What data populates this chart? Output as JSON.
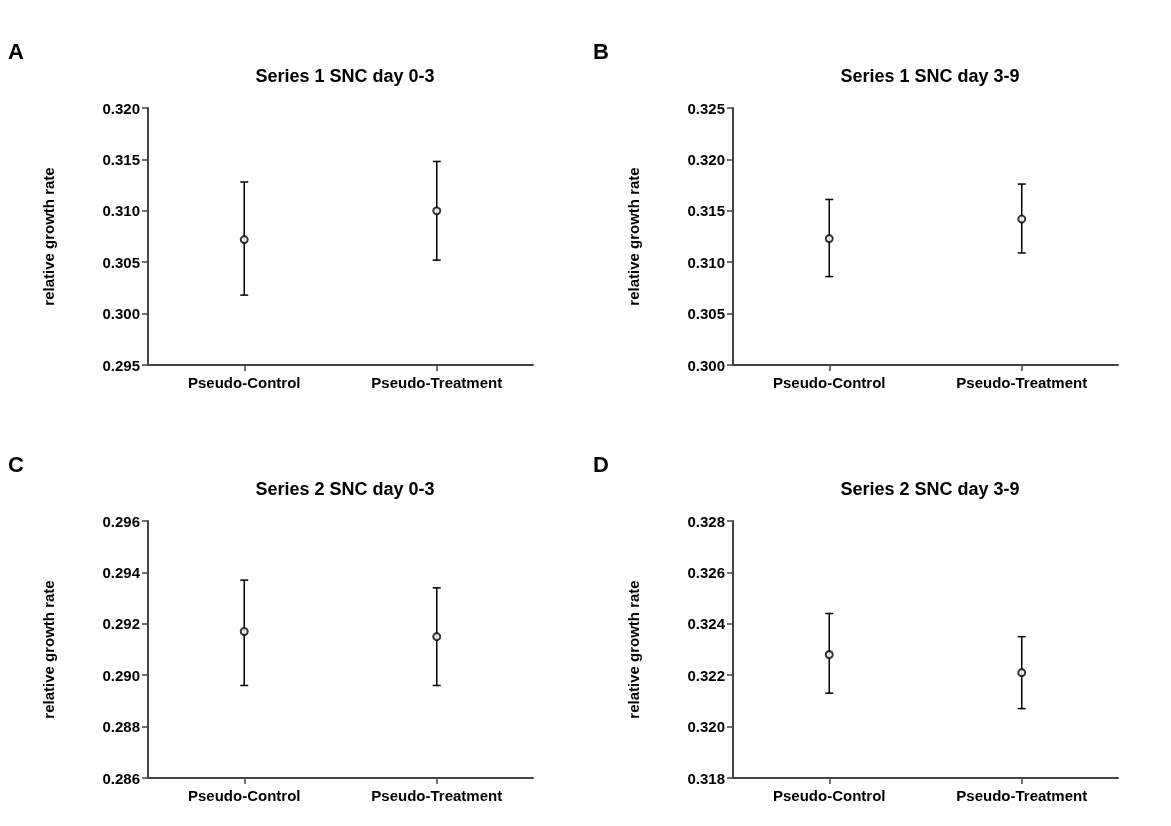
{
  "chart_data": [
    {
      "type": "scatter",
      "title": "Series 1 SNC day 0-3",
      "ylabel": "relative growth rate",
      "annotations": [
        "A"
      ],
      "categories": [
        "Pseudo-Control",
        "Pseudo-Treatment"
      ],
      "marker": "circle",
      "grid": false,
      "series": [
        {
          "color": "#000000",
          "values": [
            0.3072,
            0.31
          ],
          "errors": [
            [
              0.3018,
              0.3128
            ],
            [
              0.3052,
              0.3148
            ]
          ]
        }
      ],
      "ylim": [
        0.295,
        0.32
      ],
      "yticks": [
        {
          "value": 0.295,
          "label": "0.295"
        },
        {
          "value": 0.3,
          "label": "0.300"
        },
        {
          "value": 0.305,
          "label": "0.305"
        },
        {
          "value": 0.31,
          "label": "0.310"
        },
        {
          "value": 0.315,
          "label": "0.315"
        },
        {
          "value": 0.32,
          "label": "0.320"
        }
      ]
    },
    {
      "type": "scatter",
      "title": "Series 1 SNC day 3-9",
      "ylabel": "relative growth rate",
      "annotations": [
        "B"
      ],
      "categories": [
        "Pseudo-Control",
        "Pseudo-Treatment"
      ],
      "marker": "circle",
      "grid": false,
      "series": [
        {
          "color": "#000000",
          "values": [
            0.3123,
            0.3142
          ],
          "errors": [
            [
              0.3086,
              0.3161
            ],
            [
              0.3109,
              0.3176
            ]
          ]
        }
      ],
      "ylim": [
        0.3,
        0.325
      ],
      "yticks": [
        {
          "value": 0.3,
          "label": "0.300"
        },
        {
          "value": 0.305,
          "label": "0.305"
        },
        {
          "value": 0.31,
          "label": "0.310"
        },
        {
          "value": 0.315,
          "label": "0.315"
        },
        {
          "value": 0.32,
          "label": "0.320"
        },
        {
          "value": 0.325,
          "label": "0.325"
        }
      ]
    },
    {
      "type": "scatter",
      "title": "Series 2 SNC day 0-3",
      "ylabel": "relative growth rate",
      "annotations": [
        "C"
      ],
      "categories": [
        "Pseudo-Control",
        "Pseudo-Treatment"
      ],
      "marker": "circle",
      "grid": false,
      "series": [
        {
          "color": "#000000",
          "values": [
            0.2917,
            0.2915
          ],
          "errors": [
            [
              0.2896,
              0.2937
            ],
            [
              0.2896,
              0.2934
            ]
          ]
        }
      ],
      "ylim": [
        0.286,
        0.296
      ],
      "yticks": [
        {
          "value": 0.286,
          "label": "0.286"
        },
        {
          "value": 0.288,
          "label": "0.288"
        },
        {
          "value": 0.29,
          "label": "0.290"
        },
        {
          "value": 0.292,
          "label": "0.292"
        },
        {
          "value": 0.294,
          "label": "0.294"
        },
        {
          "value": 0.296,
          "label": "0.296"
        }
      ]
    },
    {
      "type": "scatter",
      "title": "Series 2 SNC day 3-9",
      "ylabel": "relative growth rate",
      "annotations": [
        "D"
      ],
      "categories": [
        "Pseudo-Control",
        "Pseudo-Treatment"
      ],
      "marker": "circle",
      "grid": false,
      "series": [
        {
          "color": "#000000",
          "values": [
            0.3228,
            0.3221
          ],
          "errors": [
            [
              0.3213,
              0.3244
            ],
            [
              0.3207,
              0.3235
            ]
          ]
        }
      ],
      "ylim": [
        0.318,
        0.328
      ],
      "yticks": [
        {
          "value": 0.318,
          "label": "0.318"
        },
        {
          "value": 0.32,
          "label": "0.320"
        },
        {
          "value": 0.322,
          "label": "0.322"
        },
        {
          "value": 0.324,
          "label": "0.324"
        },
        {
          "value": 0.326,
          "label": "0.326"
        },
        {
          "value": 0.328,
          "label": "0.328"
        }
      ]
    }
  ]
}
